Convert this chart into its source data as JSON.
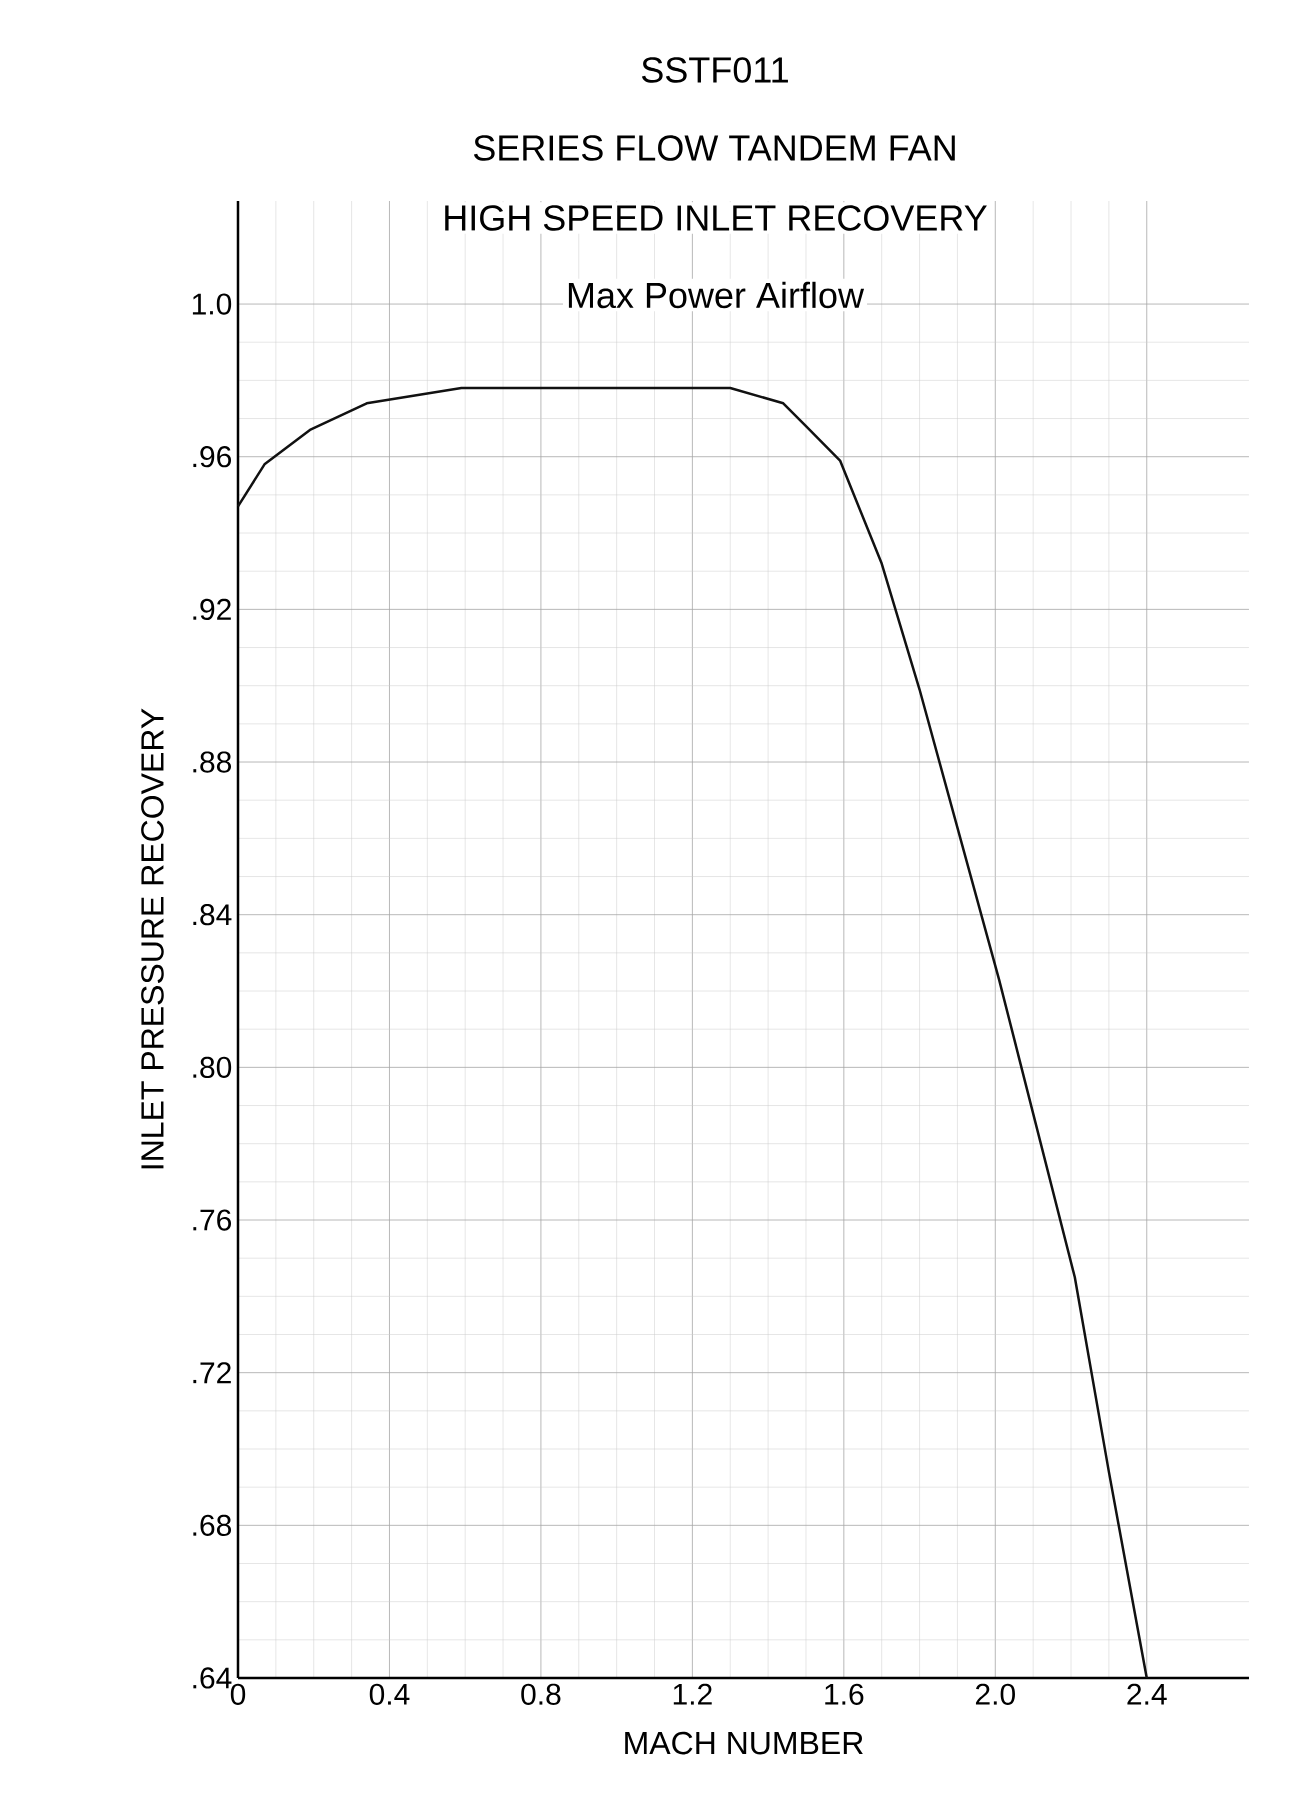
{
  "chart_data": {
    "type": "line",
    "title": "SSTF011",
    "subtitle": "SERIES FLOW TANDEM FAN",
    "annotations": [
      "HIGH SPEED INLET RECOVERY",
      "Max Power Airflow"
    ],
    "xlabel": "MACH NUMBER",
    "ylabel": "INLET PRESSURE RECOVERY",
    "x": [
      0,
      0.07,
      0.19,
      0.34,
      0.59,
      1.0,
      1.3,
      1.44,
      1.5,
      1.59,
      1.7,
      1.8,
      2.01,
      2.21,
      2.3,
      2.4
    ],
    "series": [
      {
        "color": "#111111",
        "values": [
          0.947,
          0.958,
          0.967,
          0.974,
          0.978,
          0.978,
          0.978,
          0.974,
          0.968,
          0.959,
          0.932,
          0.899,
          0.823,
          0.745,
          0.694,
          0.64
        ]
      }
    ],
    "xlim": [
      0,
      2.67
    ],
    "ylim": [
      0.64,
      1.027
    ],
    "xticks": [
      {
        "value": 0,
        "label": "0"
      },
      {
        "value": 0.4,
        "label": "0.4"
      },
      {
        "value": 0.8,
        "label": "0.8"
      },
      {
        "value": 1.2,
        "label": "1.2"
      },
      {
        "value": 1.6,
        "label": "1.6"
      },
      {
        "value": 2.0,
        "label": "2.0"
      },
      {
        "value": 2.4,
        "label": "2.4"
      }
    ],
    "yticks": [
      {
        "value": 0.64,
        "label": ".64"
      },
      {
        "value": 0.68,
        "label": ".68"
      },
      {
        "value": 0.72,
        "label": ".72"
      },
      {
        "value": 0.76,
        "label": ".76"
      },
      {
        "value": 0.8,
        "label": ".80"
      },
      {
        "value": 0.84,
        "label": ".84"
      },
      {
        "value": 0.88,
        "label": ".88"
      },
      {
        "value": 0.92,
        "label": ".92"
      },
      {
        "value": 0.96,
        "label": ".96"
      },
      {
        "value": 1.0,
        "label": "1.0"
      }
    ],
    "grid": true,
    "marker": "none",
    "line_style": "solid"
  }
}
